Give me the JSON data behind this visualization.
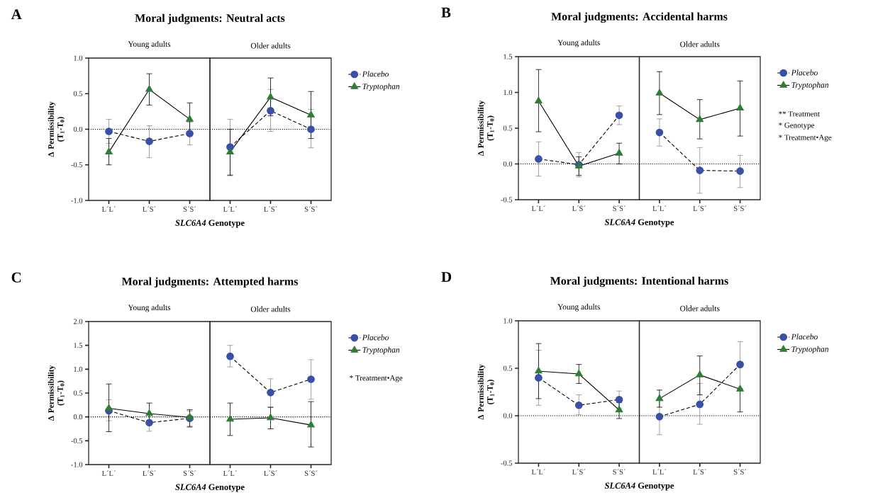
{
  "chart_data": [
    {
      "type": "line",
      "title": "Moral judgments: Neutral acts",
      "subtitle": "Young adults",
      "xlabel": "*SLC6A4* Genotype",
      "ylabel": "Δ Permissibility (T$_{1}$-T$_{0}$)",
      "categories": [
        "L´L´",
        "L´S´",
        "S´S´"
      ],
      "ylim": [
        -1,
        1
      ],
      "yticks": [
        {
          "value": -1,
          "label": "-1.0"
        },
        {
          "value": -0.5,
          "label": "-0.5"
        },
        {
          "value": 0,
          "label": "0.0"
        },
        {
          "value": 0.5,
          "label": "0.5"
        },
        {
          "value": 1,
          "label": "1.0"
        }
      ],
      "ref_lines": [
        {
          "axis": "y",
          "value": 0,
          "line_style": "dotted"
        }
      ],
      "annotations": [
        "A"
      ],
      "series": [
        {
          "color": "#3a4fa8",
          "marker": "circle",
          "line_style": "dashed",
          "values": [
            -0.03,
            -0.17,
            -0.06
          ],
          "errors": [
            [
              -0.2,
              0.14
            ],
            [
              -0.4,
              0.05
            ],
            [
              -0.22,
              0.1
            ]
          ]
        },
        {
          "color": "#2e7d32",
          "marker": "triangle",
          "line_style": "solid",
          "values": [
            -0.32,
            0.56,
            0.14
          ],
          "errors": [
            [
              -0.5,
              -0.13
            ],
            [
              0.34,
              0.78
            ],
            [
              -0.09,
              0.37
            ]
          ]
        }
      ]
    },
    {
      "type": "line",
      "subtitle": "Older adults",
      "categories": [
        "L´L´",
        "L´S´",
        "S´S´"
      ],
      "ylim": [
        -1,
        1
      ],
      "tick_labels": "x",
      "legend": "right",
      "ref_lines": [
        {
          "axis": "y",
          "value": 0,
          "line_style": "dotted"
        }
      ],
      "series": [
        {
          "name": "Placebo",
          "color": "#3a4fa8",
          "marker": "circle",
          "line_style": "dashed",
          "values": [
            -0.25,
            0.26,
            0.0
          ],
          "errors": [
            [
              -0.64,
              0.14
            ],
            [
              -0.03,
              0.56
            ],
            [
              -0.26,
              0.28
            ]
          ]
        },
        {
          "name": "Tryptophan",
          "color": "#2e7d32",
          "marker": "triangle",
          "line_style": "solid",
          "values": [
            -0.32,
            0.45,
            0.2
          ],
          "errors": [
            [
              -0.65,
              0.0
            ],
            [
              0.19,
              0.72
            ],
            [
              -0.13,
              0.53
            ]
          ]
        }
      ]
    },
    {
      "type": "line",
      "title": "Moral judgments: Accidental harms",
      "subtitle": "Young adults",
      "xlabel": "*SLC6A4* Genotype",
      "ylabel": "Δ Permissibility (T$_{1}$-T$_{0}$)",
      "categories": [
        "L´L´",
        "L´S´",
        "S´S´"
      ],
      "ylim": [
        -0.5,
        1.5
      ],
      "yticks": [
        {
          "value": -0.5,
          "label": "-0.5"
        },
        {
          "value": 0,
          "label": "0.0"
        },
        {
          "value": 0.5,
          "label": "0.5"
        },
        {
          "value": 1,
          "label": "1.0"
        },
        {
          "value": 1.5,
          "label": "1.5"
        }
      ],
      "ref_lines": [
        {
          "axis": "y",
          "value": 0,
          "line_style": "dotted"
        }
      ],
      "annotations": [
        "B"
      ],
      "series": [
        {
          "color": "#3a4fa8",
          "marker": "circle",
          "line_style": "dashed",
          "values": [
            0.07,
            -0.01,
            0.68
          ],
          "errors": [
            [
              -0.17,
              0.31
            ],
            [
              -0.18,
              0.16
            ],
            [
              0.55,
              0.81
            ]
          ]
        },
        {
          "color": "#2e7d32",
          "marker": "triangle",
          "line_style": "solid",
          "values": [
            0.88,
            -0.03,
            0.15
          ],
          "errors": [
            [
              0.45,
              1.32
            ],
            [
              -0.16,
              0.1
            ],
            [
              0.0,
              0.29
            ]
          ]
        }
      ]
    },
    {
      "type": "line",
      "subtitle": "Older adults",
      "categories": [
        "L´L´",
        "L´S´",
        "S´S´"
      ],
      "ylim": [
        -0.5,
        1.5
      ],
      "tick_labels": "x",
      "legend": "right",
      "ref_lines": [
        {
          "axis": "y",
          "value": 0,
          "line_style": "dotted"
        }
      ],
      "annotations": [
        "** Treatment",
        "* Genotype",
        "* Treatment•Age"
      ],
      "series": [
        {
          "name": "Placebo",
          "color": "#3a4fa8",
          "marker": "circle",
          "line_style": "dashed",
          "values": [
            0.44,
            -0.09,
            -0.1
          ],
          "errors": [
            [
              0.25,
              0.63
            ],
            [
              -0.41,
              0.23
            ],
            [
              -0.33,
              0.12
            ]
          ]
        },
        {
          "name": "Tryptophan",
          "color": "#2e7d32",
          "marker": "triangle",
          "line_style": "solid",
          "values": [
            0.99,
            0.62,
            0.78
          ],
          "errors": [
            [
              0.69,
              1.29
            ],
            [
              0.35,
              0.9
            ],
            [
              0.39,
              1.16
            ]
          ]
        }
      ]
    },
    {
      "type": "line",
      "title": "Moral judgments: Attempted harms",
      "subtitle": "Young adults",
      "xlabel": "*SLC6A4* Genotype",
      "ylabel": "Δ Permissibility (T$_{1}$-T$_{0}$)",
      "categories": [
        "L´L´",
        "L´S´",
        "S´S´"
      ],
      "ylim": [
        -1,
        2
      ],
      "yticks": [
        {
          "value": -1,
          "label": "-1.0"
        },
        {
          "value": -0.5,
          "label": "-0.5"
        },
        {
          "value": 0,
          "label": "0.0"
        },
        {
          "value": 0.5,
          "label": "0.5"
        },
        {
          "value": 1,
          "label": "1.0"
        },
        {
          "value": 1.5,
          "label": "1.5"
        },
        {
          "value": 2,
          "label": "2.0"
        }
      ],
      "ref_lines": [
        {
          "axis": "y",
          "value": 0,
          "line_style": "dotted"
        }
      ],
      "annotations": [
        "C"
      ],
      "series": [
        {
          "color": "#3a4fa8",
          "marker": "circle",
          "line_style": "dashed",
          "values": [
            0.13,
            -0.12,
            -0.03
          ],
          "errors": [
            [
              -0.08,
              0.36
            ],
            [
              -0.3,
              0.06
            ],
            [
              -0.22,
              0.12
            ]
          ]
        },
        {
          "color": "#2e7d32",
          "marker": "triangle",
          "line_style": "solid",
          "values": [
            0.18,
            0.07,
            -0.01
          ],
          "errors": [
            [
              -0.31,
              0.69
            ],
            [
              -0.15,
              0.29
            ],
            [
              -0.2,
              0.15
            ]
          ]
        }
      ]
    },
    {
      "type": "line",
      "subtitle": "Older adults",
      "categories": [
        "L´L´",
        "L´S´",
        "S´S´"
      ],
      "ylim": [
        -1,
        2
      ],
      "tick_labels": "x",
      "legend": "right",
      "ref_lines": [
        {
          "axis": "y",
          "value": 0,
          "line_style": "dotted"
        }
      ],
      "annotations": [
        "* Treatment•Age"
      ],
      "series": [
        {
          "name": "Placebo",
          "color": "#3a4fa8",
          "marker": "circle",
          "line_style": "dashed",
          "values": [
            1.27,
            0.51,
            0.79
          ],
          "errors": [
            [
              1.05,
              1.5
            ],
            [
              0.21,
              0.8
            ],
            [
              0.37,
              1.2
            ]
          ]
        },
        {
          "name": "Tryptophan",
          "color": "#2e7d32",
          "marker": "triangle",
          "line_style": "solid",
          "values": [
            -0.05,
            -0.02,
            -0.17
          ],
          "errors": [
            [
              -0.39,
              0.29
            ],
            [
              -0.25,
              0.2
            ],
            [
              -0.63,
              0.32
            ]
          ]
        }
      ]
    },
    {
      "type": "line",
      "title": "Moral judgments: Intentional harms",
      "subtitle": "Young adults",
      "xlabel": "*SLC6A4* Genotype",
      "ylabel": "Δ Permissibility (T$_{1}$-T$_{0}$)",
      "categories": [
        "L´L´",
        "L´S´",
        "S´S´"
      ],
      "ylim": [
        -0.5,
        1
      ],
      "yticks": [
        {
          "value": -0.5,
          "label": "-0.5"
        },
        {
          "value": 0,
          "label": "0.0"
        },
        {
          "value": 0.5,
          "label": "0.5"
        },
        {
          "value": 1,
          "label": "1.0"
        }
      ],
      "ref_lines": [
        {
          "axis": "y",
          "value": 0,
          "line_style": "dotted"
        }
      ],
      "annotations": [
        "D"
      ],
      "series": [
        {
          "color": "#3a4fa8",
          "marker": "circle",
          "line_style": "dashed",
          "values": [
            0.4,
            0.11,
            0.17
          ],
          "errors": [
            [
              0.11,
              0.69
            ],
            [
              0.01,
              0.22
            ],
            [
              0.08,
              0.26
            ]
          ]
        },
        {
          "color": "#2e7d32",
          "marker": "triangle",
          "line_style": "solid",
          "values": [
            0.47,
            0.44,
            0.06
          ],
          "errors": [
            [
              0.18,
              0.76
            ],
            [
              0.34,
              0.54
            ],
            [
              -0.03,
              0.14
            ]
          ]
        }
      ]
    },
    {
      "type": "line",
      "subtitle": "Older adults",
      "categories": [
        "L´L´",
        "L´S´",
        "S´S´"
      ],
      "ylim": [
        -0.5,
        1
      ],
      "tick_labels": "x",
      "legend": "right",
      "ref_lines": [
        {
          "axis": "y",
          "value": 0,
          "line_style": "dotted"
        }
      ],
      "series": [
        {
          "name": "Placebo",
          "color": "#3a4fa8",
          "marker": "circle",
          "line_style": "dashed",
          "values": [
            -0.01,
            0.12,
            0.54
          ],
          "errors": [
            [
              -0.2,
              0.18
            ],
            [
              -0.09,
              0.34
            ],
            [
              0.29,
              0.78
            ]
          ]
        },
        {
          "name": "Tryptophan",
          "color": "#2e7d32",
          "marker": "triangle",
          "line_style": "solid",
          "values": [
            0.18,
            0.43,
            0.28
          ],
          "errors": [
            [
              0.09,
              0.27
            ],
            [
              0.22,
              0.63
            ],
            [
              0.04,
              0.28
            ]
          ]
        }
      ]
    }
  ]
}
